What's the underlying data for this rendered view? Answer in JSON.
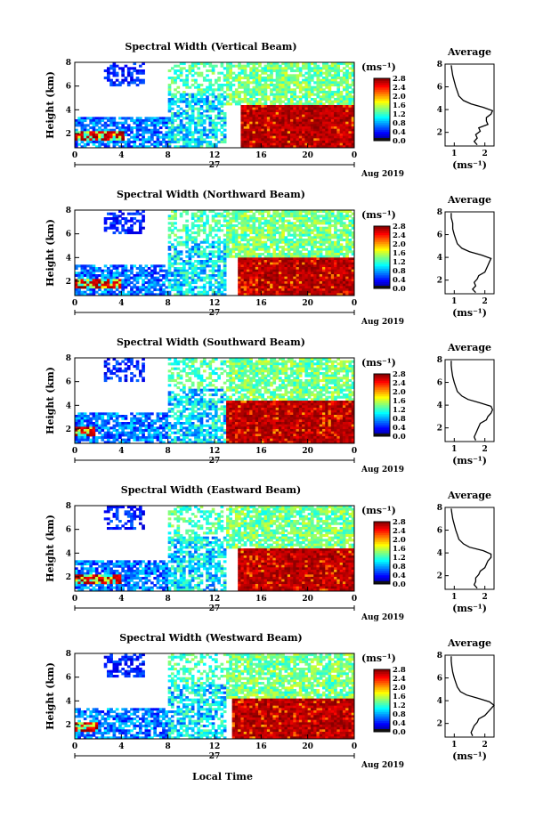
{
  "figure": {
    "xlabel": "Local Time",
    "colorbar_unit": "(ms⁻¹)",
    "profile_xlabel": "(ms⁻¹)",
    "profile_title": "Average",
    "date_label": "Aug 2019",
    "day_label": "27",
    "y_axis_label": "Height (km)"
  },
  "chart_data": [
    {
      "type": "heatmap",
      "title": "Spectral Width (Vertical Beam)",
      "ylabel": "Height (km)",
      "x_ticks": [
        "0",
        "4",
        "8",
        "12",
        "16",
        "20",
        "0"
      ],
      "x_range_hours": [
        0,
        24
      ],
      "y_ticks": [
        "2",
        "4",
        "6",
        "8"
      ],
      "ylim_km": [
        0.8,
        8.0
      ],
      "date": "Aug 2019",
      "day": "27",
      "colorbar": {
        "unit": "(ms⁻¹)",
        "range": [
          0,
          2.8
        ],
        "ticks": [
          "0.0",
          "0.4",
          "0.8",
          "1.2",
          "1.6",
          "2.0",
          "2.4",
          "2.8"
        ]
      },
      "features": {
        "low_level_high_width_hours": [
          0,
          4.2
        ],
        "high_width_layer_hours": [
          14.2,
          24
        ],
        "high_width_top_km": 4.5
      },
      "profile": {
        "title": "Average",
        "xlabel": "(ms⁻¹)",
        "x_ticks": [
          "1",
          "2"
        ],
        "xlim": [
          0.7,
          2.3
        ],
        "y_ticks": [
          "2",
          "4",
          "6",
          "8"
        ],
        "heights_km": [
          0.9,
          1.2,
          1.5,
          1.8,
          2.1,
          2.4,
          2.7,
          3.0,
          3.3,
          3.6,
          3.9,
          4.2,
          4.5,
          4.8,
          5.2,
          5.6,
          6.0,
          6.5,
          7.0,
          7.5,
          7.9
        ],
        "values": [
          1.75,
          1.65,
          1.75,
          1.7,
          1.85,
          1.8,
          2.1,
          2.05,
          2.05,
          2.2,
          2.25,
          1.95,
          1.55,
          1.3,
          1.15,
          1.1,
          1.05,
          1.0,
          0.95,
          0.92,
          0.9
        ]
      }
    },
    {
      "type": "heatmap",
      "title": "Spectral Width (Northward Beam)",
      "ylabel": "Height (km)",
      "x_ticks": [
        "0",
        "4",
        "8",
        "12",
        "16",
        "20",
        "0"
      ],
      "x_range_hours": [
        0,
        24
      ],
      "y_ticks": [
        "2",
        "4",
        "6",
        "8"
      ],
      "ylim_km": [
        0.8,
        8.0
      ],
      "date": "Aug 2019",
      "day": "27",
      "colorbar": {
        "unit": "(ms⁻¹)",
        "range": [
          0,
          2.8
        ],
        "ticks": [
          "0.0",
          "0.4",
          "0.8",
          "1.2",
          "1.6",
          "2.0",
          "2.4",
          "2.8"
        ]
      },
      "features": {
        "low_level_high_width_hours": [
          0,
          4.0
        ],
        "high_width_layer_hours": [
          14.0,
          24
        ],
        "high_width_top_km": 4.0
      },
      "profile": {
        "title": "Average",
        "xlabel": "(ms⁻¹)",
        "x_ticks": [
          "1",
          "2"
        ],
        "xlim": [
          0.7,
          2.3
        ],
        "y_ticks": [
          "2",
          "4",
          "6",
          "8"
        ],
        "heights_km": [
          0.9,
          1.2,
          1.5,
          1.8,
          2.1,
          2.4,
          2.7,
          3.0,
          3.3,
          3.6,
          3.9,
          4.2,
          4.5,
          4.8,
          5.2,
          5.6,
          6.0,
          6.5,
          7.0,
          7.5,
          7.9
        ],
        "values": [
          1.7,
          1.6,
          1.7,
          1.65,
          1.75,
          1.8,
          2.0,
          2.05,
          2.1,
          2.15,
          2.2,
          1.9,
          1.5,
          1.25,
          1.1,
          1.05,
          1.0,
          0.95,
          0.95,
          0.9,
          0.9
        ]
      }
    },
    {
      "type": "heatmap",
      "title": "Spectral Width (Southward Beam)",
      "ylabel": "Height (km)",
      "x_ticks": [
        "0",
        "4",
        "8",
        "12",
        "16",
        "20",
        "0"
      ],
      "x_range_hours": [
        0,
        24
      ],
      "y_ticks": [
        "2",
        "4",
        "6",
        "8"
      ],
      "ylim_km": [
        0.8,
        8.0
      ],
      "date": "Aug 2019",
      "day": "27",
      "colorbar": {
        "unit": "(ms⁻¹)",
        "range": [
          0,
          2.8
        ],
        "ticks": [
          "0.0",
          "0.4",
          "0.8",
          "1.2",
          "1.6",
          "2.0",
          "2.4",
          "2.8"
        ]
      },
      "features": {
        "low_level_high_width_hours": [
          0,
          1.8
        ],
        "high_width_layer_hours": [
          13.0,
          24
        ],
        "high_width_top_km": 4.5
      },
      "profile": {
        "title": "Average",
        "xlabel": "(ms⁻¹)",
        "x_ticks": [
          "1",
          "2"
        ],
        "xlim": [
          0.7,
          2.3
        ],
        "y_ticks": [
          "2",
          "4",
          "6",
          "8"
        ],
        "heights_km": [
          0.9,
          1.2,
          1.5,
          1.8,
          2.1,
          2.4,
          2.7,
          3.0,
          3.3,
          3.6,
          3.9,
          4.2,
          4.5,
          4.8,
          5.2,
          5.6,
          6.0,
          6.5,
          7.0,
          7.5,
          7.9
        ],
        "values": [
          1.7,
          1.65,
          1.7,
          1.75,
          1.8,
          1.85,
          2.05,
          2.1,
          2.2,
          2.25,
          2.2,
          1.85,
          1.45,
          1.25,
          1.1,
          1.05,
          1.0,
          0.95,
          0.92,
          0.9,
          0.9
        ]
      }
    },
    {
      "type": "heatmap",
      "title": "Spectral Width (Eastward Beam)",
      "ylabel": "Height (km)",
      "x_ticks": [
        "0",
        "4",
        "8",
        "12",
        "16",
        "20",
        "0"
      ],
      "x_range_hours": [
        0,
        24
      ],
      "y_ticks": [
        "2",
        "4",
        "6",
        "8"
      ],
      "ylim_km": [
        0.8,
        8.0
      ],
      "date": "Aug 2019",
      "day": "27",
      "colorbar": {
        "unit": "(ms⁻¹)",
        "range": [
          0,
          2.8
        ],
        "ticks": [
          "0.0",
          "0.4",
          "0.8",
          "1.2",
          "1.6",
          "2.0",
          "2.4",
          "2.8"
        ]
      },
      "features": {
        "low_level_high_width_hours": [
          0,
          4.0
        ],
        "high_width_layer_hours": [
          14.0,
          24
        ],
        "high_width_top_km": 4.5
      },
      "profile": {
        "title": "Average",
        "xlabel": "(ms⁻¹)",
        "x_ticks": [
          "1",
          "2"
        ],
        "xlim": [
          0.7,
          2.3
        ],
        "y_ticks": [
          "2",
          "4",
          "6",
          "8"
        ],
        "heights_km": [
          0.9,
          1.2,
          1.5,
          1.8,
          2.1,
          2.4,
          2.7,
          3.0,
          3.3,
          3.6,
          3.9,
          4.2,
          4.5,
          4.8,
          5.2,
          5.6,
          6.0,
          6.5,
          7.0,
          7.5,
          7.9
        ],
        "values": [
          1.75,
          1.65,
          1.7,
          1.7,
          1.8,
          1.85,
          2.0,
          2.05,
          2.1,
          2.2,
          2.2,
          1.95,
          1.5,
          1.3,
          1.15,
          1.1,
          1.05,
          1.0,
          0.95,
          0.92,
          0.9
        ]
      }
    },
    {
      "type": "heatmap",
      "title": "Spectral Width (Westward Beam)",
      "ylabel": "Height (km)",
      "x_ticks": [
        "0",
        "4",
        "8",
        "12",
        "16",
        "20",
        "0"
      ],
      "x_range_hours": [
        0,
        24
      ],
      "y_ticks": [
        "2",
        "4",
        "6",
        "8"
      ],
      "ylim_km": [
        0.8,
        8.0
      ],
      "date": "Aug 2019",
      "day": "27",
      "colorbar": {
        "unit": "(ms⁻¹)",
        "range": [
          0,
          2.8
        ],
        "ticks": [
          "0.0",
          "0.4",
          "0.8",
          "1.2",
          "1.6",
          "2.0",
          "2.4",
          "2.8"
        ]
      },
      "features": {
        "low_level_high_width_hours": [
          0,
          2.0
        ],
        "high_width_layer_hours": [
          13.5,
          24
        ],
        "high_width_top_km": 4.2
      },
      "profile": {
        "title": "Average",
        "xlabel": "(ms⁻¹)",
        "x_ticks": [
          "1",
          "2"
        ],
        "xlim": [
          0.7,
          2.3
        ],
        "y_ticks": [
          "2",
          "4",
          "6",
          "8"
        ],
        "heights_km": [
          0.9,
          1.2,
          1.5,
          1.8,
          2.1,
          2.4,
          2.7,
          3.0,
          3.3,
          3.6,
          3.9,
          4.2,
          4.5,
          4.8,
          5.2,
          5.6,
          6.0,
          6.5,
          7.0,
          7.5,
          7.9
        ],
        "values": [
          1.6,
          1.55,
          1.6,
          1.65,
          1.75,
          1.8,
          2.0,
          2.1,
          2.2,
          2.3,
          2.15,
          1.8,
          1.4,
          1.2,
          1.1,
          1.05,
          1.0,
          0.95,
          0.92,
          0.9,
          0.9
        ]
      }
    }
  ]
}
